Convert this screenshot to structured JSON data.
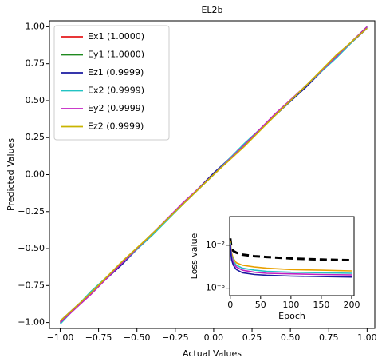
{
  "chart_data": [
    {
      "type": "line",
      "title": "EL2b",
      "xlabel": "Actual Values",
      "ylabel": "Predicted Values",
      "x": [
        -1.0,
        -0.8,
        -0.6,
        -0.4,
        -0.2,
        0.0,
        0.2,
        0.4,
        0.6,
        0.8,
        1.0
      ],
      "series": [
        {
          "name": "Ex1 (1.0000)",
          "color": "#e41a1c",
          "values": [
            -1.0,
            -0.8,
            -0.6,
            -0.4,
            -0.2,
            0.0,
            0.2,
            0.4,
            0.6,
            0.8,
            1.0
          ]
        },
        {
          "name": "Ey1 (1.0000)",
          "color": "#1f8a1f",
          "values": [
            -1.0,
            -0.8,
            -0.6,
            -0.4,
            -0.2,
            0.0,
            0.2,
            0.4,
            0.6,
            0.8,
            1.0
          ]
        },
        {
          "name": "Ez1 (0.9999)",
          "color": "#1a1aa0",
          "values": [
            -0.99,
            -0.8,
            -0.61,
            -0.4,
            -0.2,
            0.01,
            0.2,
            0.4,
            0.59,
            0.8,
            0.99
          ]
        },
        {
          "name": "Ex2 (0.9999)",
          "color": "#22c3c3",
          "values": [
            -1.01,
            -0.79,
            -0.6,
            -0.41,
            -0.2,
            0.0,
            0.21,
            0.4,
            0.6,
            0.79,
            1.0
          ]
        },
        {
          "name": "Ey2 (0.9999)",
          "color": "#c21fc2",
          "values": [
            -1.0,
            -0.81,
            -0.6,
            -0.4,
            -0.19,
            0.0,
            0.2,
            0.41,
            0.6,
            0.8,
            1.0
          ]
        },
        {
          "name": "Ez2 (0.9999)",
          "color": "#c9b400",
          "values": [
            -0.99,
            -0.8,
            -0.59,
            -0.4,
            -0.2,
            0.0,
            0.19,
            0.4,
            0.6,
            0.81,
            0.99
          ]
        }
      ],
      "xlim": [
        -1.07,
        1.05
      ],
      "ylim": [
        -1.04,
        1.04
      ],
      "xticks": [
        {
          "value": -1,
          "label": "−1.00"
        },
        {
          "value": -0.75,
          "label": "−0.75"
        },
        {
          "value": -0.5,
          "label": "−0.50"
        },
        {
          "value": -0.25,
          "label": "−0.25"
        },
        {
          "value": 0,
          "label": "0.00"
        },
        {
          "value": 0.25,
          "label": "0.25"
        },
        {
          "value": 0.5,
          "label": "0.50"
        },
        {
          "value": 0.75,
          "label": "0.75"
        },
        {
          "value": 1,
          "label": "1.00"
        }
      ],
      "yticks": [
        {
          "value": -1,
          "label": "−1.00"
        },
        {
          "value": -0.75,
          "label": "−0.75"
        },
        {
          "value": -0.5,
          "label": "−0.50"
        },
        {
          "value": -0.25,
          "label": "−0.25"
        },
        {
          "value": 0,
          "label": "0.00"
        },
        {
          "value": 0.25,
          "label": "0.25"
        },
        {
          "value": 0.5,
          "label": "0.50"
        },
        {
          "value": 0.75,
          "label": "0.75"
        },
        {
          "value": 1,
          "label": "1.00"
        }
      ],
      "legend": "upper left"
    },
    {
      "type": "line",
      "xlabel": "Epoch",
      "ylabel": "Loss value",
      "yscale": "log",
      "x": [
        0,
        2,
        5,
        10,
        20,
        40,
        60,
        100,
        150,
        200
      ],
      "series": [
        {
          "color": "#000000",
          "linestyle": "dashed",
          "values": [
            0.03,
            0.006,
            0.004,
            0.003,
            0.0022,
            0.0017,
            0.0015,
            0.0012,
            0.001,
            0.0009
          ]
        },
        {
          "color": "#e8a000",
          "values": [
            0.02,
            0.003,
            0.0012,
            0.0006,
            0.0004,
            0.0003,
            0.00025,
            0.0002,
            0.00018,
            0.00016
          ]
        },
        {
          "color": "#22c3c3",
          "values": [
            0.015,
            0.002,
            0.0008,
            0.0004,
            0.00025,
            0.00018,
            0.00015,
            0.00013,
            0.00012,
            0.00011
          ]
        },
        {
          "color": "#c21fc2",
          "values": [
            0.012,
            0.0015,
            0.0006,
            0.0003,
            0.00018,
            0.00013,
            0.00011,
            0.0001,
            9e-05,
            8.5e-05
          ]
        },
        {
          "color": "#1a1aa0",
          "values": [
            0.01,
            0.001,
            0.0004,
            0.0002,
            0.00012,
            9e-05,
            8e-05,
            7e-05,
            6.5e-05,
            6e-05
          ]
        }
      ],
      "xlim": [
        -1,
        204
      ],
      "ylim": [
        3e-06,
        1
      ],
      "xticks": [
        0,
        50,
        100,
        150,
        200
      ],
      "yticks": [
        {
          "value": 0.01,
          "label": "10⁻²"
        },
        {
          "value": 1e-05,
          "label": "10⁻⁵"
        }
      ]
    }
  ]
}
